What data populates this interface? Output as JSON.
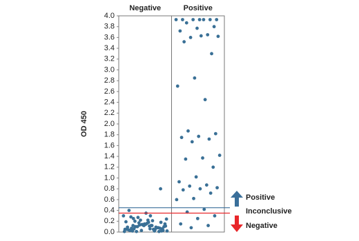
{
  "chart_data": {
    "type": "strip",
    "y_label": "OD 450",
    "ylim": [
      0,
      4
    ],
    "yticks": [
      {
        "value": 0,
        "label": "0.0"
      },
      0.2,
      0.4,
      0.6,
      0.8,
      {
        "value": 1,
        "label": "1.0"
      },
      1.2,
      1.4,
      1.6,
      1.8,
      {
        "value": 2,
        "label": "2.0"
      },
      2.2,
      2.4,
      2.6,
      2.8,
      {
        "value": 3,
        "label": "3.0"
      },
      3.2,
      3.4,
      3.6,
      3.8,
      {
        "value": 4,
        "label": "4.0"
      }
    ],
    "color": "#3a7096",
    "series": [
      {
        "name": "Negative",
        "values": [
          0.3,
          0.25,
          0.18,
          0.12,
          0.05,
          0.02,
          0.1,
          0.15,
          0.22,
          0.28,
          0.08,
          0.03,
          0.01,
          0.12,
          0.2,
          0.06,
          0.14,
          0.04,
          0.09,
          0.17,
          0.24,
          0.11,
          0.02,
          0.07,
          0.13,
          0.19,
          0.05,
          0.01,
          0.1,
          0.16,
          0.03,
          0.08,
          0.22,
          0.3,
          0.12,
          0.06,
          0.02,
          0.15,
          0.09,
          0.04,
          0.27,
          0.11,
          0.18,
          0.07,
          0.01,
          0.14,
          0.05,
          0.21,
          0.1,
          0.03,
          0.35,
          0.4,
          0.08,
          0.13,
          0.02,
          0.06,
          0.12,
          0.8
        ]
      },
      {
        "name": "Positive",
        "values": [
          3.93,
          3.93,
          3.93,
          3.93,
          3.93,
          3.93,
          3.93,
          3.87,
          3.8,
          3.77,
          3.72,
          3.65,
          3.6,
          3.62,
          3.63,
          3.52,
          3.3,
          2.85,
          2.7,
          2.45,
          1.87,
          1.82,
          1.77,
          1.75,
          1.72,
          1.67,
          1.42,
          1.37,
          1.35,
          1.2,
          1.02,
          0.93,
          0.87,
          0.85,
          0.82,
          0.8,
          0.78,
          0.72,
          0.62,
          0.6,
          0.42,
          0.37,
          0.3,
          0.25,
          0.15,
          0.12,
          0.08
        ]
      }
    ],
    "thresholds": [
      {
        "value": 0.45,
        "color": "#3a6f9a"
      },
      {
        "value": 0.35,
        "color": "#e8262a"
      }
    ],
    "zones": [
      "Positive",
      "Inconclusive",
      "Negative"
    ]
  }
}
